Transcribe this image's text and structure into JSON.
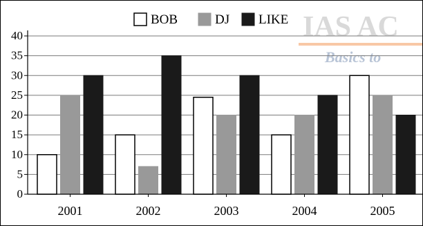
{
  "chart_data": {
    "type": "bar",
    "title": "",
    "xlabel": "",
    "ylabel": "",
    "categories": [
      "2001",
      "2002",
      "2003",
      "2004",
      "2005"
    ],
    "series": [
      {
        "name": "BOB",
        "values": [
          10,
          15,
          24.5,
          15,
          30
        ],
        "fill": "#ffffff",
        "stroke": "#000000"
      },
      {
        "name": "DJ",
        "values": [
          25,
          7,
          20,
          20,
          25
        ],
        "fill": "#999999",
        "stroke": "#999999"
      },
      {
        "name": "LIKE",
        "values": [
          30,
          35,
          30,
          25,
          20
        ],
        "fill": "#1a1a1a",
        "stroke": "#1a1a1a"
      }
    ],
    "ylim": [
      0,
      40
    ],
    "yticks": [
      "0",
      "5",
      "10",
      "15",
      "20",
      "25",
      "30",
      "35",
      "40"
    ],
    "grid": true,
    "legend_position": "top-center"
  },
  "watermark": {
    "text_line1": "IAS AC",
    "text_line2": "Basics to",
    "color_primary": "#d9d9d9",
    "color_secondary": "#b8c4d6",
    "accent_color": "#f4a36a"
  }
}
